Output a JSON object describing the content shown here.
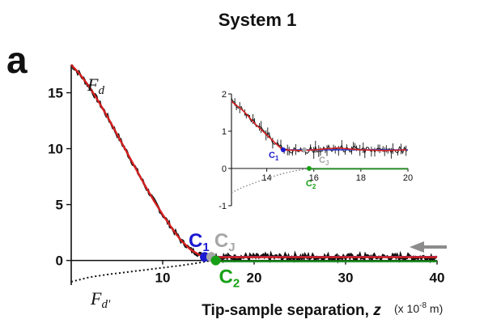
{
  "figure": {
    "title": "System 1",
    "panel_label": "a"
  },
  "chart_data": [
    {
      "type": "line",
      "title": "System 1",
      "xlabel_main": "Tip-sample separation, ",
      "xlabel_var": "z",
      "xlabel_units": "(x 10",
      "xlabel_units_exp": "-8",
      "xlabel_units_tail": " m)",
      "ylabel": "",
      "xlim": [
        0,
        40
      ],
      "ylim": [
        -2.2,
        17.5
      ],
      "xticks": [
        10,
        20,
        30,
        40
      ],
      "yticks": [
        0,
        5,
        10,
        15
      ],
      "grid": false,
      "series": [
        {
          "name": "F_d",
          "label_main": "F",
          "label_sub": "d",
          "color": "#d62020",
          "noise_color": "#111111",
          "x": [
            0,
            1,
            2,
            3,
            4,
            5,
            6,
            7,
            8,
            9,
            10,
            11,
            12,
            13,
            14,
            15,
            16,
            18,
            20,
            25,
            30,
            35,
            40
          ],
          "y": [
            17.5,
            16.6,
            15.5,
            14.2,
            12.8,
            11.3,
            9.8,
            8.3,
            6.8,
            5.4,
            4.1,
            2.9,
            1.8,
            1.0,
            0.5,
            0.35,
            0.3,
            0.3,
            0.3,
            0.3,
            0.3,
            0.3,
            0.3
          ]
        },
        {
          "name": "F_d'",
          "label_main": "F",
          "label_sub": "d'",
          "color": "#111111",
          "style": "dotted",
          "x": [
            0,
            2,
            4,
            6,
            8,
            10,
            12,
            14,
            15,
            15.8
          ],
          "y": [
            -1.9,
            -1.5,
            -1.25,
            -1.05,
            -0.85,
            -0.65,
            -0.45,
            -0.2,
            -0.05,
            0
          ]
        },
        {
          "name": "baseline",
          "color": "#2a3cd8",
          "x": [
            14.5,
            40
          ],
          "y": [
            0.32,
            0.32
          ]
        },
        {
          "name": "zero",
          "color": "#1a8a1a",
          "x": [
            15.8,
            40
          ],
          "y": [
            0,
            0
          ]
        }
      ],
      "annotations": [
        {
          "id": "C1",
          "main": "C",
          "sub": "1",
          "color": "#1a1ad0",
          "x": 14.6,
          "y": 0.32
        },
        {
          "id": "CJ",
          "main": "C",
          "sub": "J",
          "color": "#a6a6a6",
          "x": 15.3,
          "y": 0.32
        },
        {
          "id": "C2",
          "main": "C",
          "sub": "2",
          "color": "#16a016",
          "x": 15.8,
          "y": 0
        }
      ],
      "arrow": {
        "direction": "left",
        "color": "#8c8c8c",
        "y": 1.2
      }
    },
    {
      "type": "line",
      "role": "inset",
      "xlim": [
        12.5,
        20
      ],
      "ylim": [
        -1,
        2
      ],
      "xticks": [
        14,
        16,
        18,
        20
      ],
      "yticks": [
        -1,
        0,
        1,
        2
      ],
      "series": [
        {
          "name": "F_d",
          "color": "#d62020",
          "x": [
            12.5,
            13,
            13.5,
            14,
            14.5,
            14.7,
            15.5,
            16,
            17,
            18,
            19,
            20
          ],
          "y": [
            1.8,
            1.55,
            1.2,
            0.9,
            0.6,
            0.5,
            0.48,
            0.5,
            0.55,
            0.5,
            0.48,
            0.5
          ]
        },
        {
          "name": "F_d'",
          "color": "#777777",
          "style": "dotted",
          "x": [
            12.5,
            13,
            13.5,
            14,
            14.5,
            15,
            15.5,
            15.8
          ],
          "y": [
            -0.65,
            -0.5,
            -0.38,
            -0.27,
            -0.17,
            -0.09,
            -0.03,
            0
          ]
        },
        {
          "name": "baseline",
          "color": "#2a3cd8",
          "x": [
            14.7,
            20
          ],
          "y": [
            0.5,
            0.5
          ]
        },
        {
          "name": "zero",
          "color": "#1a8a1a",
          "x": [
            15.8,
            20
          ],
          "y": [
            0,
            0
          ]
        }
      ],
      "annotations": [
        {
          "id": "C1",
          "main": "C",
          "sub": "1",
          "color": "#1a1ad0",
          "x": 14.7,
          "y": 0.5
        },
        {
          "id": "CJ",
          "main": "C",
          "sub": "J",
          "color": "#a6a6a6",
          "x": 15.6,
          "y": 0.5
        },
        {
          "id": "C2",
          "main": "C",
          "sub": "2",
          "color": "#16a016",
          "x": 15.8,
          "y": 0
        }
      ]
    }
  ]
}
